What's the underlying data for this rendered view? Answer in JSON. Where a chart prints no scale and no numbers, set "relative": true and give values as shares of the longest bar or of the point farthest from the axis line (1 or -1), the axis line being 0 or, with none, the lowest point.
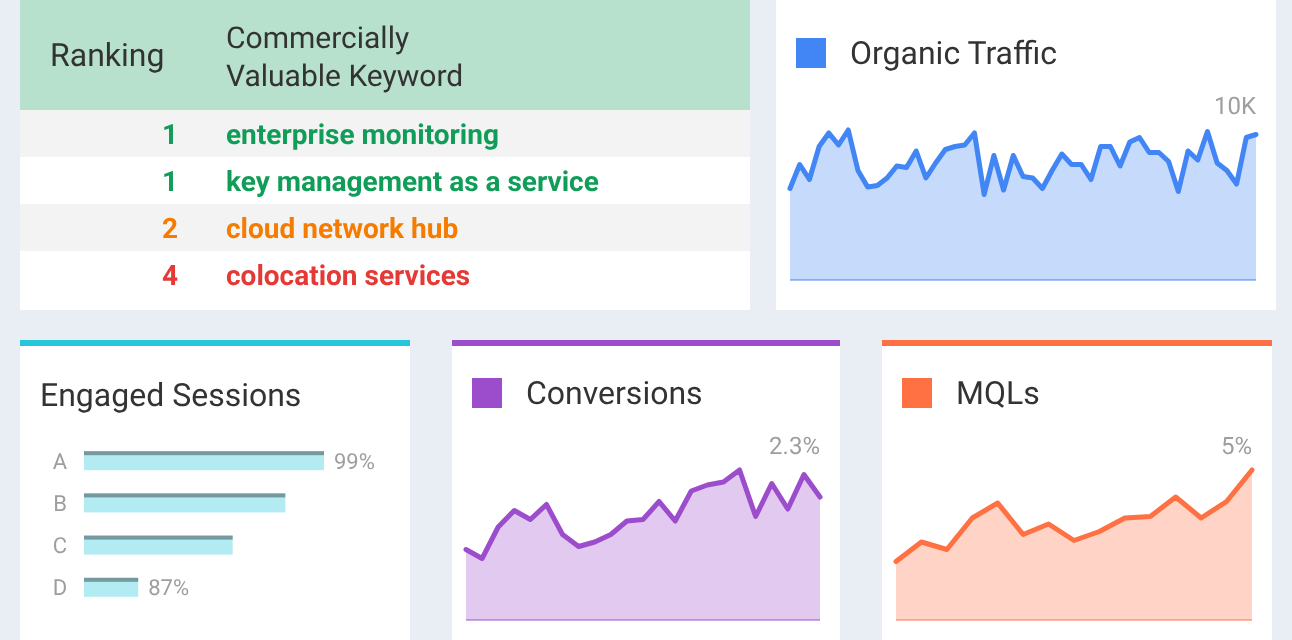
{
  "chart_data": [
    {
      "type": "other",
      "annotations": [
        "Ranking",
        "Commercially Valuable Keyword",
        "1",
        "enterprise monitoring",
        "1",
        "key management as a service",
        "2",
        "cloud network hub",
        "4",
        "colocation services"
      ]
    },
    {
      "type": "area",
      "relative": true,
      "legend": "top left",
      "categories": [
        null,
        null,
        null,
        null,
        null,
        null,
        null,
        null,
        null,
        null,
        null,
        null,
        null,
        null,
        null,
        null,
        null,
        null,
        null,
        null,
        null,
        null,
        null,
        null,
        null,
        null,
        null,
        null,
        null,
        null,
        null,
        null,
        null,
        null,
        null,
        null,
        null,
        null,
        null,
        null,
        null,
        null,
        null,
        null,
        null,
        null,
        null,
        null,
        null
      ],
      "annotations": [
        "10K"
      ],
      "series": [
        {
          "name": "Organic Traffic",
          "color": "#4285f4",
          "values": [
            0.61,
            0.77,
            0.67,
            0.89,
            0.98,
            0.9,
            1,
            0.73,
            0.62,
            0.63,
            0.68,
            0.76,
            0.75,
            0.86,
            0.68,
            0.78,
            0.87,
            0.89,
            0.9,
            0.98,
            0.57,
            0.83,
            0.6,
            0.83,
            0.69,
            0.68,
            0.61,
            0.73,
            0.84,
            0.77,
            0.77,
            0.67,
            0.89,
            0.89,
            0.76,
            0.92,
            0.95,
            0.85,
            0.85,
            0.79,
            0.59,
            0.86,
            0.8,
            0.99,
            0.78,
            0.73,
            0.64,
            0.95,
            0.97
          ]
        }
      ]
    },
    {
      "type": "bar",
      "orientation": "horizontal",
      "title": "Engaged Sessions",
      "categories": [
        "A",
        "B",
        "C",
        "D"
      ],
      "values": [
        99,
        96.5,
        93.1,
        87
      ],
      "xlim": [
        83.5,
        99
      ],
      "tick_labels": "y",
      "value_labels": [
        "99%",
        null,
        null,
        "87%"
      ],
      "color": "#b2ebf2"
    },
    {
      "type": "area",
      "relative": true,
      "legend": "top left",
      "categories": [
        null,
        null,
        null,
        null,
        null,
        null,
        null,
        null,
        null,
        null,
        null,
        null,
        null,
        null,
        null,
        null,
        null,
        null,
        null,
        null,
        null,
        null,
        null
      ],
      "annotations": [
        "2.3%"
      ],
      "series": [
        {
          "name": "Conversions",
          "color": "#9c4dcc",
          "values": [
            0.47,
            0.41,
            0.62,
            0.73,
            0.67,
            0.77,
            0.57,
            0.49,
            0.52,
            0.57,
            0.66,
            0.67,
            0.79,
            0.66,
            0.86,
            0.9,
            0.92,
            1,
            0.69,
            0.91,
            0.74,
            0.97,
            0.82
          ]
        }
      ]
    },
    {
      "type": "area",
      "relative": true,
      "legend": "top left",
      "categories": [
        null,
        null,
        null,
        null,
        null,
        null,
        null,
        null,
        null,
        null,
        null,
        null,
        null,
        null,
        null
      ],
      "annotations": [
        "5%"
      ],
      "series": [
        {
          "name": "MQLs",
          "color": "#ff7043",
          "values": [
            0.39,
            0.52,
            0.47,
            0.68,
            0.78,
            0.57,
            0.64,
            0.53,
            0.59,
            0.68,
            0.69,
            0.82,
            0.68,
            0.79,
            1
          ]
        }
      ]
    }
  ]
}
